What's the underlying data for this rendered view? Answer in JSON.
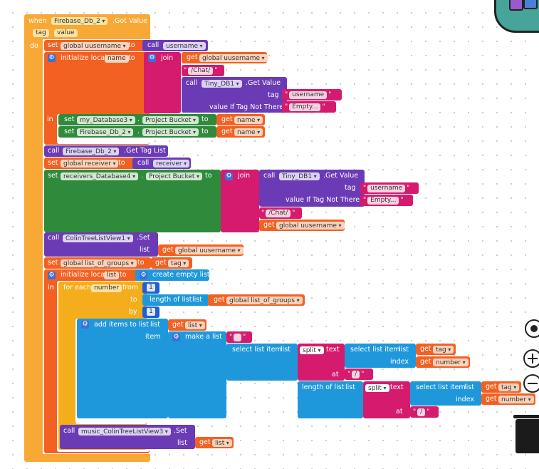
{
  "event": {
    "when": "when",
    "component": "Firebase_Db_2",
    "event_name": ".Got Value",
    "param_tag": "tag",
    "param_value": "value",
    "do": "do"
  },
  "kw": {
    "set": "set",
    "to": "to",
    "call": "call",
    "get": "get",
    "join": "join",
    "in": "in",
    "initialize_local": "initialize local",
    "list": "list",
    "tag": "tag",
    "value_if_tag_not_there": "value If Tag Not There",
    "for_each": "for each",
    "from": "from",
    "by": "by",
    "add_items_to_list": "add items to list",
    "item": "item",
    "make_a_list": "make a list",
    "select_list_item": "select list item",
    "index": "index",
    "split": "split",
    "text": "text",
    "at": "at",
    "length_of_list": "length of list",
    "create_empty_list": "create empty list",
    "dot": "."
  },
  "vars": {
    "global_uusername": "global uusername",
    "username": "username",
    "name": "name",
    "global_receiver": "global receiver",
    "receiver": "receiver",
    "global_list_of_groups": "global list_of_groups",
    "list": "list",
    "number": "number",
    "tag": "tag"
  },
  "components": {
    "tiny_db1": "Tiny_DB1",
    "my_database3": "my_Database3",
    "firebase_db_2": "Firebase_Db_2",
    "receivers_database4": "receivers_Database4",
    "colin_tree_list_view1": "ColinTreeListView1",
    "music_colin_tree_list_view3": "music_ColinTreeListView3"
  },
  "props": {
    "project_bucket": "Project Bucket"
  },
  "methods": {
    "get_value": ".Get Value",
    "get_tag_list": ".Get Tag List",
    "set": ".Set"
  },
  "strings": {
    "chat": "/Chat/",
    "username": "username",
    "empty": "Empty...",
    "blank": "",
    "slash": "/"
  },
  "numbers": {
    "one_from": "1",
    "one_by": "1"
  },
  "colors": {
    "event": "#f8a935",
    "variable": "#f26122",
    "procedure": "#6a3bb5",
    "component_set": "#2f8a3c",
    "text": "#d51b6d",
    "list": "#1f98db",
    "control": "#f4ae1b"
  }
}
